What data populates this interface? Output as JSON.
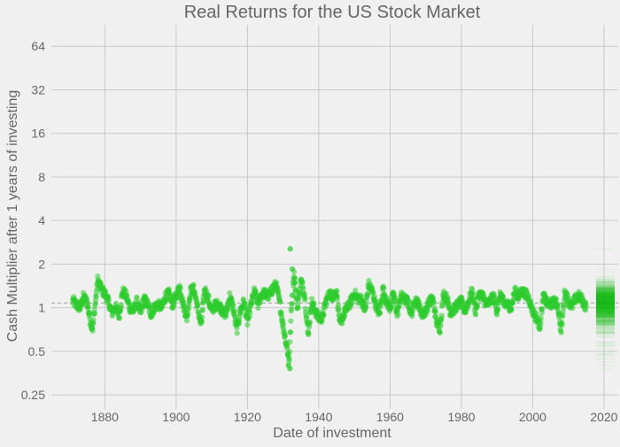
{
  "chart_data": {
    "type": "scatter",
    "title": "Real Returns for the US Stock Market",
    "xlabel": "Date of investment",
    "ylabel": "Cash Multiplier after 1 years of investing",
    "x_ticks": [
      "1880",
      "1900",
      "1920",
      "1940",
      "1960",
      "1980",
      "2000",
      "2020"
    ],
    "x_tick_values": [
      1880,
      1900,
      1920,
      1940,
      1960,
      1980,
      2000,
      2020
    ],
    "y_ticks": [
      "0.25",
      "0.5",
      "1",
      "2",
      "4",
      "8",
      "16",
      "32",
      "64"
    ],
    "y_tick_values": [
      0.25,
      0.5,
      1,
      2,
      4,
      8,
      16,
      32,
      64
    ],
    "xlim": [
      1865,
      2024
    ],
    "ylim": [
      0.2,
      90
    ],
    "y_scale": "log",
    "grid": true,
    "mean_line": 1.08,
    "point_color": "#2ecc2e",
    "trend_points": [
      [
        1871.0,
        1.12
      ],
      [
        1872.0,
        1.05
      ],
      [
        1873.0,
        1.0
      ],
      [
        1874.0,
        1.18
      ],
      [
        1875.0,
        1.1
      ],
      [
        1876.0,
        0.8
      ],
      [
        1876.6,
        0.72
      ],
      [
        1877.2,
        1.0
      ],
      [
        1878.0,
        1.55
      ],
      [
        1879.0,
        1.35
      ],
      [
        1880.0,
        1.25
      ],
      [
        1881.0,
        1.1
      ],
      [
        1882.0,
        0.92
      ],
      [
        1883.0,
        1.02
      ],
      [
        1884.0,
        0.88
      ],
      [
        1885.0,
        1.3
      ],
      [
        1886.0,
        1.2
      ],
      [
        1887.0,
        1.0
      ],
      [
        1888.0,
        0.95
      ],
      [
        1889.0,
        1.1
      ],
      [
        1890.0,
        0.92
      ],
      [
        1891.0,
        1.15
      ],
      [
        1892.0,
        1.05
      ],
      [
        1893.0,
        0.9
      ],
      [
        1894.0,
        1.02
      ],
      [
        1895.0,
        1.05
      ],
      [
        1896.0,
        1.0
      ],
      [
        1897.0,
        1.2
      ],
      [
        1898.0,
        1.25
      ],
      [
        1899.0,
        1.05
      ],
      [
        1900.0,
        1.2
      ],
      [
        1901.0,
        1.4
      ],
      [
        1902.0,
        1.05
      ],
      [
        1903.0,
        0.85
      ],
      [
        1904.0,
        1.3
      ],
      [
        1905.0,
        1.35
      ],
      [
        1906.0,
        1.0
      ],
      [
        1907.0,
        0.75
      ],
      [
        1908.0,
        1.35
      ],
      [
        1909.0,
        1.15
      ],
      [
        1910.0,
        0.95
      ],
      [
        1911.0,
        1.05
      ],
      [
        1912.0,
        1.05
      ],
      [
        1913.0,
        0.95
      ],
      [
        1914.0,
        0.9
      ],
      [
        1915.0,
        1.2
      ],
      [
        1916.0,
        1.0
      ],
      [
        1917.0,
        0.7
      ],
      [
        1918.0,
        0.95
      ],
      [
        1919.0,
        1.1
      ],
      [
        1920.0,
        0.8
      ],
      [
        1921.0,
        1.05
      ],
      [
        1922.0,
        1.3
      ],
      [
        1923.0,
        1.05
      ],
      [
        1924.0,
        1.25
      ],
      [
        1925.0,
        1.25
      ],
      [
        1926.0,
        1.2
      ],
      [
        1927.0,
        1.35
      ],
      [
        1928.0,
        1.45
      ],
      [
        1929.0,
        1.1
      ],
      [
        1930.0,
        0.75
      ],
      [
        1931.0,
        0.55
      ],
      [
        1931.7,
        0.43
      ],
      [
        1932.3,
        0.95
      ],
      [
        1933.0,
        1.75
      ],
      [
        1934.0,
        1.0
      ],
      [
        1935.0,
        1.55
      ],
      [
        1936.0,
        1.25
      ],
      [
        1937.0,
        0.65
      ],
      [
        1938.0,
        1.1
      ],
      [
        1939.0,
        0.95
      ],
      [
        1940.0,
        0.85
      ],
      [
        1941.0,
        0.85
      ],
      [
        1942.0,
        1.1
      ],
      [
        1943.0,
        1.25
      ],
      [
        1944.0,
        1.2
      ],
      [
        1945.0,
        1.3
      ],
      [
        1946.0,
        0.75
      ],
      [
        1947.0,
        0.9
      ],
      [
        1948.0,
        1.0
      ],
      [
        1949.0,
        1.1
      ],
      [
        1950.0,
        1.25
      ],
      [
        1951.0,
        1.15
      ],
      [
        1952.0,
        1.15
      ],
      [
        1953.0,
        0.95
      ],
      [
        1954.0,
        1.45
      ],
      [
        1955.0,
        1.3
      ],
      [
        1956.0,
        1.05
      ],
      [
        1957.0,
        0.9
      ],
      [
        1958.0,
        1.35
      ],
      [
        1959.0,
        1.1
      ],
      [
        1960.0,
        1.0
      ],
      [
        1961.0,
        1.25
      ],
      [
        1962.0,
        0.9
      ],
      [
        1963.0,
        1.2
      ],
      [
        1964.0,
        1.15
      ],
      [
        1965.0,
        1.1
      ],
      [
        1966.0,
        0.9
      ],
      [
        1967.0,
        1.15
      ],
      [
        1968.0,
        1.05
      ],
      [
        1969.0,
        0.9
      ],
      [
        1970.0,
        0.95
      ],
      [
        1971.0,
        1.1
      ],
      [
        1972.0,
        1.15
      ],
      [
        1973.0,
        0.8
      ],
      [
        1974.0,
        0.72
      ],
      [
        1975.0,
        1.25
      ],
      [
        1976.0,
        1.15
      ],
      [
        1977.0,
        0.92
      ],
      [
        1978.0,
        0.98
      ],
      [
        1979.0,
        1.05
      ],
      [
        1980.0,
        1.1
      ],
      [
        1981.0,
        0.95
      ],
      [
        1982.0,
        1.1
      ],
      [
        1983.0,
        1.3
      ],
      [
        1984.0,
        0.95
      ],
      [
        1985.0,
        1.25
      ],
      [
        1986.0,
        1.2
      ],
      [
        1987.0,
        1.05
      ],
      [
        1988.0,
        1.1
      ],
      [
        1989.0,
        1.2
      ],
      [
        1990.0,
        0.95
      ],
      [
        1991.0,
        1.25
      ],
      [
        1992.0,
        1.05
      ],
      [
        1993.0,
        1.05
      ],
      [
        1994.0,
        1.0
      ],
      [
        1995.0,
        1.3
      ],
      [
        1996.0,
        1.2
      ],
      [
        1997.0,
        1.3
      ],
      [
        1998.0,
        1.25
      ],
      [
        1999.0,
        1.15
      ],
      [
        2000.0,
        0.95
      ],
      [
        2001.0,
        0.85
      ],
      [
        2002.0,
        0.75
      ],
      [
        2003.0,
        1.2
      ],
      [
        2004.0,
        1.08
      ],
      [
        2005.0,
        1.05
      ],
      [
        2006.0,
        1.1
      ],
      [
        2007.0,
        1.05
      ],
      [
        2008.0,
        0.68
      ],
      [
        2009.0,
        1.3
      ],
      [
        2010.0,
        1.12
      ],
      [
        2011.0,
        1.02
      ],
      [
        2012.0,
        1.15
      ],
      [
        2013.0,
        1.2
      ],
      [
        2014.0,
        1.12
      ],
      [
        2015.0,
        1.0
      ]
    ]
  }
}
